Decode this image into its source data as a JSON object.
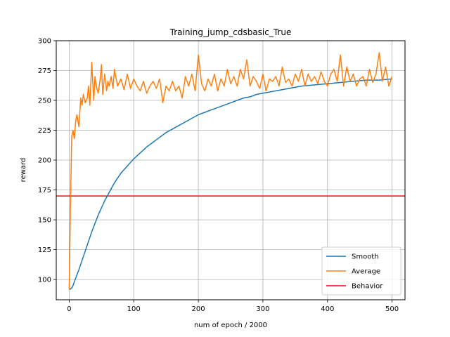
{
  "chart_data": {
    "type": "line",
    "title": "Training_jump_cdsbasic_True",
    "xlabel": "num of epoch / 2000",
    "ylabel": "reward",
    "xlim": [
      -20,
      520
    ],
    "ylim": [
      83,
      300
    ],
    "xticks": [
      0,
      100,
      200,
      300,
      400,
      500
    ],
    "yticks": [
      100,
      125,
      150,
      175,
      200,
      225,
      250,
      275,
      300
    ],
    "grid": true,
    "legend_position": "lower right",
    "series": [
      {
        "name": "Smooth",
        "color": "#1f77b4",
        "x": [
          0,
          2,
          4,
          6,
          8,
          10,
          15,
          20,
          25,
          30,
          35,
          40,
          45,
          50,
          55,
          60,
          65,
          70,
          75,
          80,
          85,
          90,
          95,
          100,
          110,
          120,
          130,
          140,
          150,
          160,
          170,
          180,
          190,
          200,
          210,
          220,
          230,
          240,
          250,
          260,
          270,
          280,
          290,
          300,
          320,
          340,
          360,
          380,
          400,
          420,
          440,
          460,
          480,
          500
        ],
        "y": [
          92,
          92,
          93,
          95,
          98,
          101,
          108,
          116,
          124,
          132,
          140,
          147,
          154,
          160,
          166,
          171,
          176,
          181,
          185,
          189,
          192,
          195,
          198,
          201,
          206,
          211,
          215,
          219,
          223,
          226,
          229,
          232,
          235,
          238,
          240,
          242,
          244,
          246,
          248,
          250,
          252,
          253,
          255,
          256,
          258,
          260,
          262,
          263,
          264,
          265,
          266,
          267,
          267,
          268
        ]
      },
      {
        "name": "Average",
        "color": "#ff7f0e",
        "x": [
          0,
          2,
          4,
          6,
          8,
          10,
          12,
          15,
          18,
          20,
          22,
          25,
          28,
          30,
          32,
          35,
          38,
          40,
          42,
          45,
          48,
          50,
          52,
          55,
          58,
          60,
          62,
          65,
          68,
          70,
          75,
          80,
          85,
          90,
          95,
          100,
          105,
          110,
          115,
          120,
          125,
          130,
          135,
          140,
          145,
          150,
          155,
          160,
          165,
          170,
          175,
          180,
          185,
          190,
          195,
          200,
          205,
          210,
          215,
          220,
          225,
          230,
          235,
          240,
          245,
          250,
          255,
          260,
          265,
          270,
          275,
          280,
          285,
          290,
          295,
          300,
          305,
          310,
          315,
          320,
          325,
          330,
          335,
          340,
          345,
          350,
          355,
          360,
          365,
          370,
          375,
          380,
          385,
          390,
          395,
          400,
          405,
          410,
          415,
          420,
          425,
          430,
          435,
          440,
          445,
          450,
          455,
          460,
          465,
          470,
          475,
          480,
          485,
          490,
          495,
          500
        ],
        "y": [
          92,
          160,
          220,
          225,
          218,
          232,
          238,
          228,
          252,
          246,
          255,
          248,
          252,
          262,
          246,
          282,
          250,
          270,
          262,
          256,
          268,
          280,
          255,
          272,
          258,
          266,
          262,
          270,
          260,
          276,
          262,
          268,
          259,
          272,
          260,
          268,
          262,
          258,
          266,
          256,
          262,
          266,
          260,
          268,
          248,
          262,
          258,
          266,
          258,
          262,
          252,
          270,
          262,
          272,
          258,
          288,
          264,
          258,
          268,
          262,
          272,
          258,
          268,
          262,
          276,
          264,
          270,
          262,
          276,
          268,
          284,
          262,
          270,
          266,
          260,
          272,
          258,
          268,
          266,
          270,
          262,
          278,
          265,
          268,
          262,
          272,
          266,
          276,
          262,
          272,
          266,
          270,
          264,
          274,
          266,
          262,
          272,
          276,
          266,
          288,
          262,
          278,
          266,
          272,
          262,
          268,
          270,
          262,
          276,
          265,
          272,
          290,
          266,
          278,
          262,
          270
        ]
      },
      {
        "name": "Behavior",
        "color": "#ff0000",
        "x": [
          -20,
          520
        ],
        "y": [
          170,
          170
        ]
      }
    ]
  }
}
